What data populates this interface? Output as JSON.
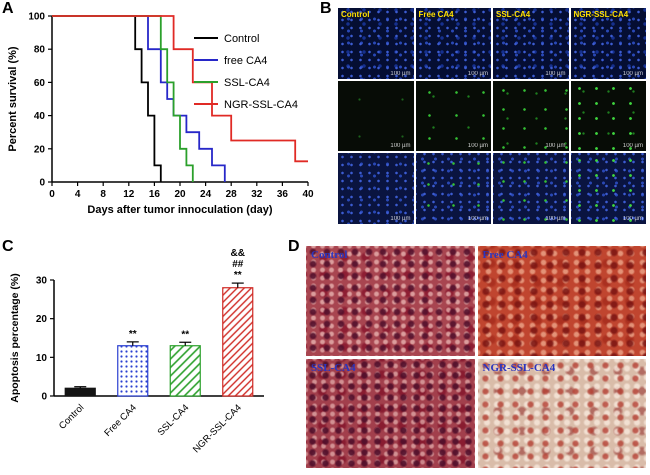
{
  "panels": {
    "a": "A",
    "b": "B",
    "c": "C",
    "d": "D"
  },
  "chart_data": [
    {
      "id": "survival",
      "type": "line",
      "title": "",
      "xlabel": "Days after tumor innoculation (day)",
      "ylabel": "Percent survival (%)",
      "xlim": [
        0,
        40
      ],
      "ylim": [
        0,
        100
      ],
      "xticks": [
        0,
        4,
        8,
        12,
        16,
        20,
        24,
        28,
        32,
        36,
        40
      ],
      "yticks": [
        0,
        20,
        40,
        60,
        80,
        100
      ],
      "grid": false,
      "legend_position": "inside-right",
      "series": [
        {
          "name": "Control",
          "color": "#000000",
          "points": [
            [
              0,
              100
            ],
            [
              13,
              100
            ],
            [
              13,
              80
            ],
            [
              14,
              80
            ],
            [
              14,
              60
            ],
            [
              15,
              60
            ],
            [
              15,
              40
            ],
            [
              16,
              40
            ],
            [
              16,
              10
            ],
            [
              17,
              10
            ],
            [
              17,
              0
            ]
          ]
        },
        {
          "name": "free CA4",
          "color": "#2727c8",
          "points": [
            [
              0,
              100
            ],
            [
              15,
              100
            ],
            [
              15,
              80
            ],
            [
              17,
              80
            ],
            [
              17,
              60
            ],
            [
              18,
              60
            ],
            [
              18,
              50
            ],
            [
              19,
              50
            ],
            [
              19,
              40
            ],
            [
              21,
              40
            ],
            [
              21,
              30
            ],
            [
              23,
              30
            ],
            [
              23,
              20
            ],
            [
              25,
              20
            ],
            [
              25,
              10
            ],
            [
              27,
              10
            ],
            [
              27,
              0
            ]
          ]
        },
        {
          "name": "SSL-CA4",
          "color": "#2ba02b",
          "points": [
            [
              0,
              100
            ],
            [
              17,
              100
            ],
            [
              17,
              80
            ],
            [
              18,
              80
            ],
            [
              18,
              60
            ],
            [
              19,
              60
            ],
            [
              19,
              40
            ],
            [
              20,
              40
            ],
            [
              20,
              20
            ],
            [
              21,
              20
            ],
            [
              21,
              10
            ],
            [
              22,
              10
            ],
            [
              22,
              0
            ]
          ]
        },
        {
          "name": "NGR-SSL-CA4",
          "color": "#e02a25",
          "points": [
            [
              0,
              100
            ],
            [
              19,
              100
            ],
            [
              19,
              80
            ],
            [
              22,
              80
            ],
            [
              22,
              60
            ],
            [
              25,
              60
            ],
            [
              25,
              40
            ],
            [
              28,
              40
            ],
            [
              28,
              25
            ],
            [
              38,
              25
            ],
            [
              38,
              12.5
            ],
            [
              40,
              12.5
            ]
          ]
        }
      ]
    },
    {
      "id": "apoptosis",
      "type": "bar",
      "categories": [
        "Control",
        "Free CA4",
        "SSL-CA4",
        "NGR-SSL-CA4"
      ],
      "values": [
        2,
        13,
        13,
        28
      ],
      "errors": [
        0.4,
        1.0,
        0.9,
        1.2
      ],
      "annotations": [
        [],
        [
          "**"
        ],
        [
          "**"
        ],
        [
          "**",
          "##",
          "&&"
        ]
      ],
      "ylabel": "Apoptosis percentage (%)",
      "ylim": [
        0,
        30
      ],
      "yticks": [
        0,
        10,
        20,
        30
      ],
      "colors": [
        "#141414",
        "#2b3fd0",
        "#2ba02b",
        "#d02b25"
      ],
      "patterns": [
        "solid",
        "dots",
        "hatch",
        "hatch"
      ]
    }
  ],
  "panel_b": {
    "columns": [
      "Control",
      "Free CA4",
      "SSL-CA4",
      "NGR-SSL-CA4"
    ],
    "scale_text": "100 µm",
    "label_color": "#ffe000"
  },
  "panel_d": {
    "tiles": [
      "Control",
      "Free CA4",
      "SSL-CA4",
      "NGR-SSL-CA4"
    ],
    "label_color": "#2a35c0"
  }
}
